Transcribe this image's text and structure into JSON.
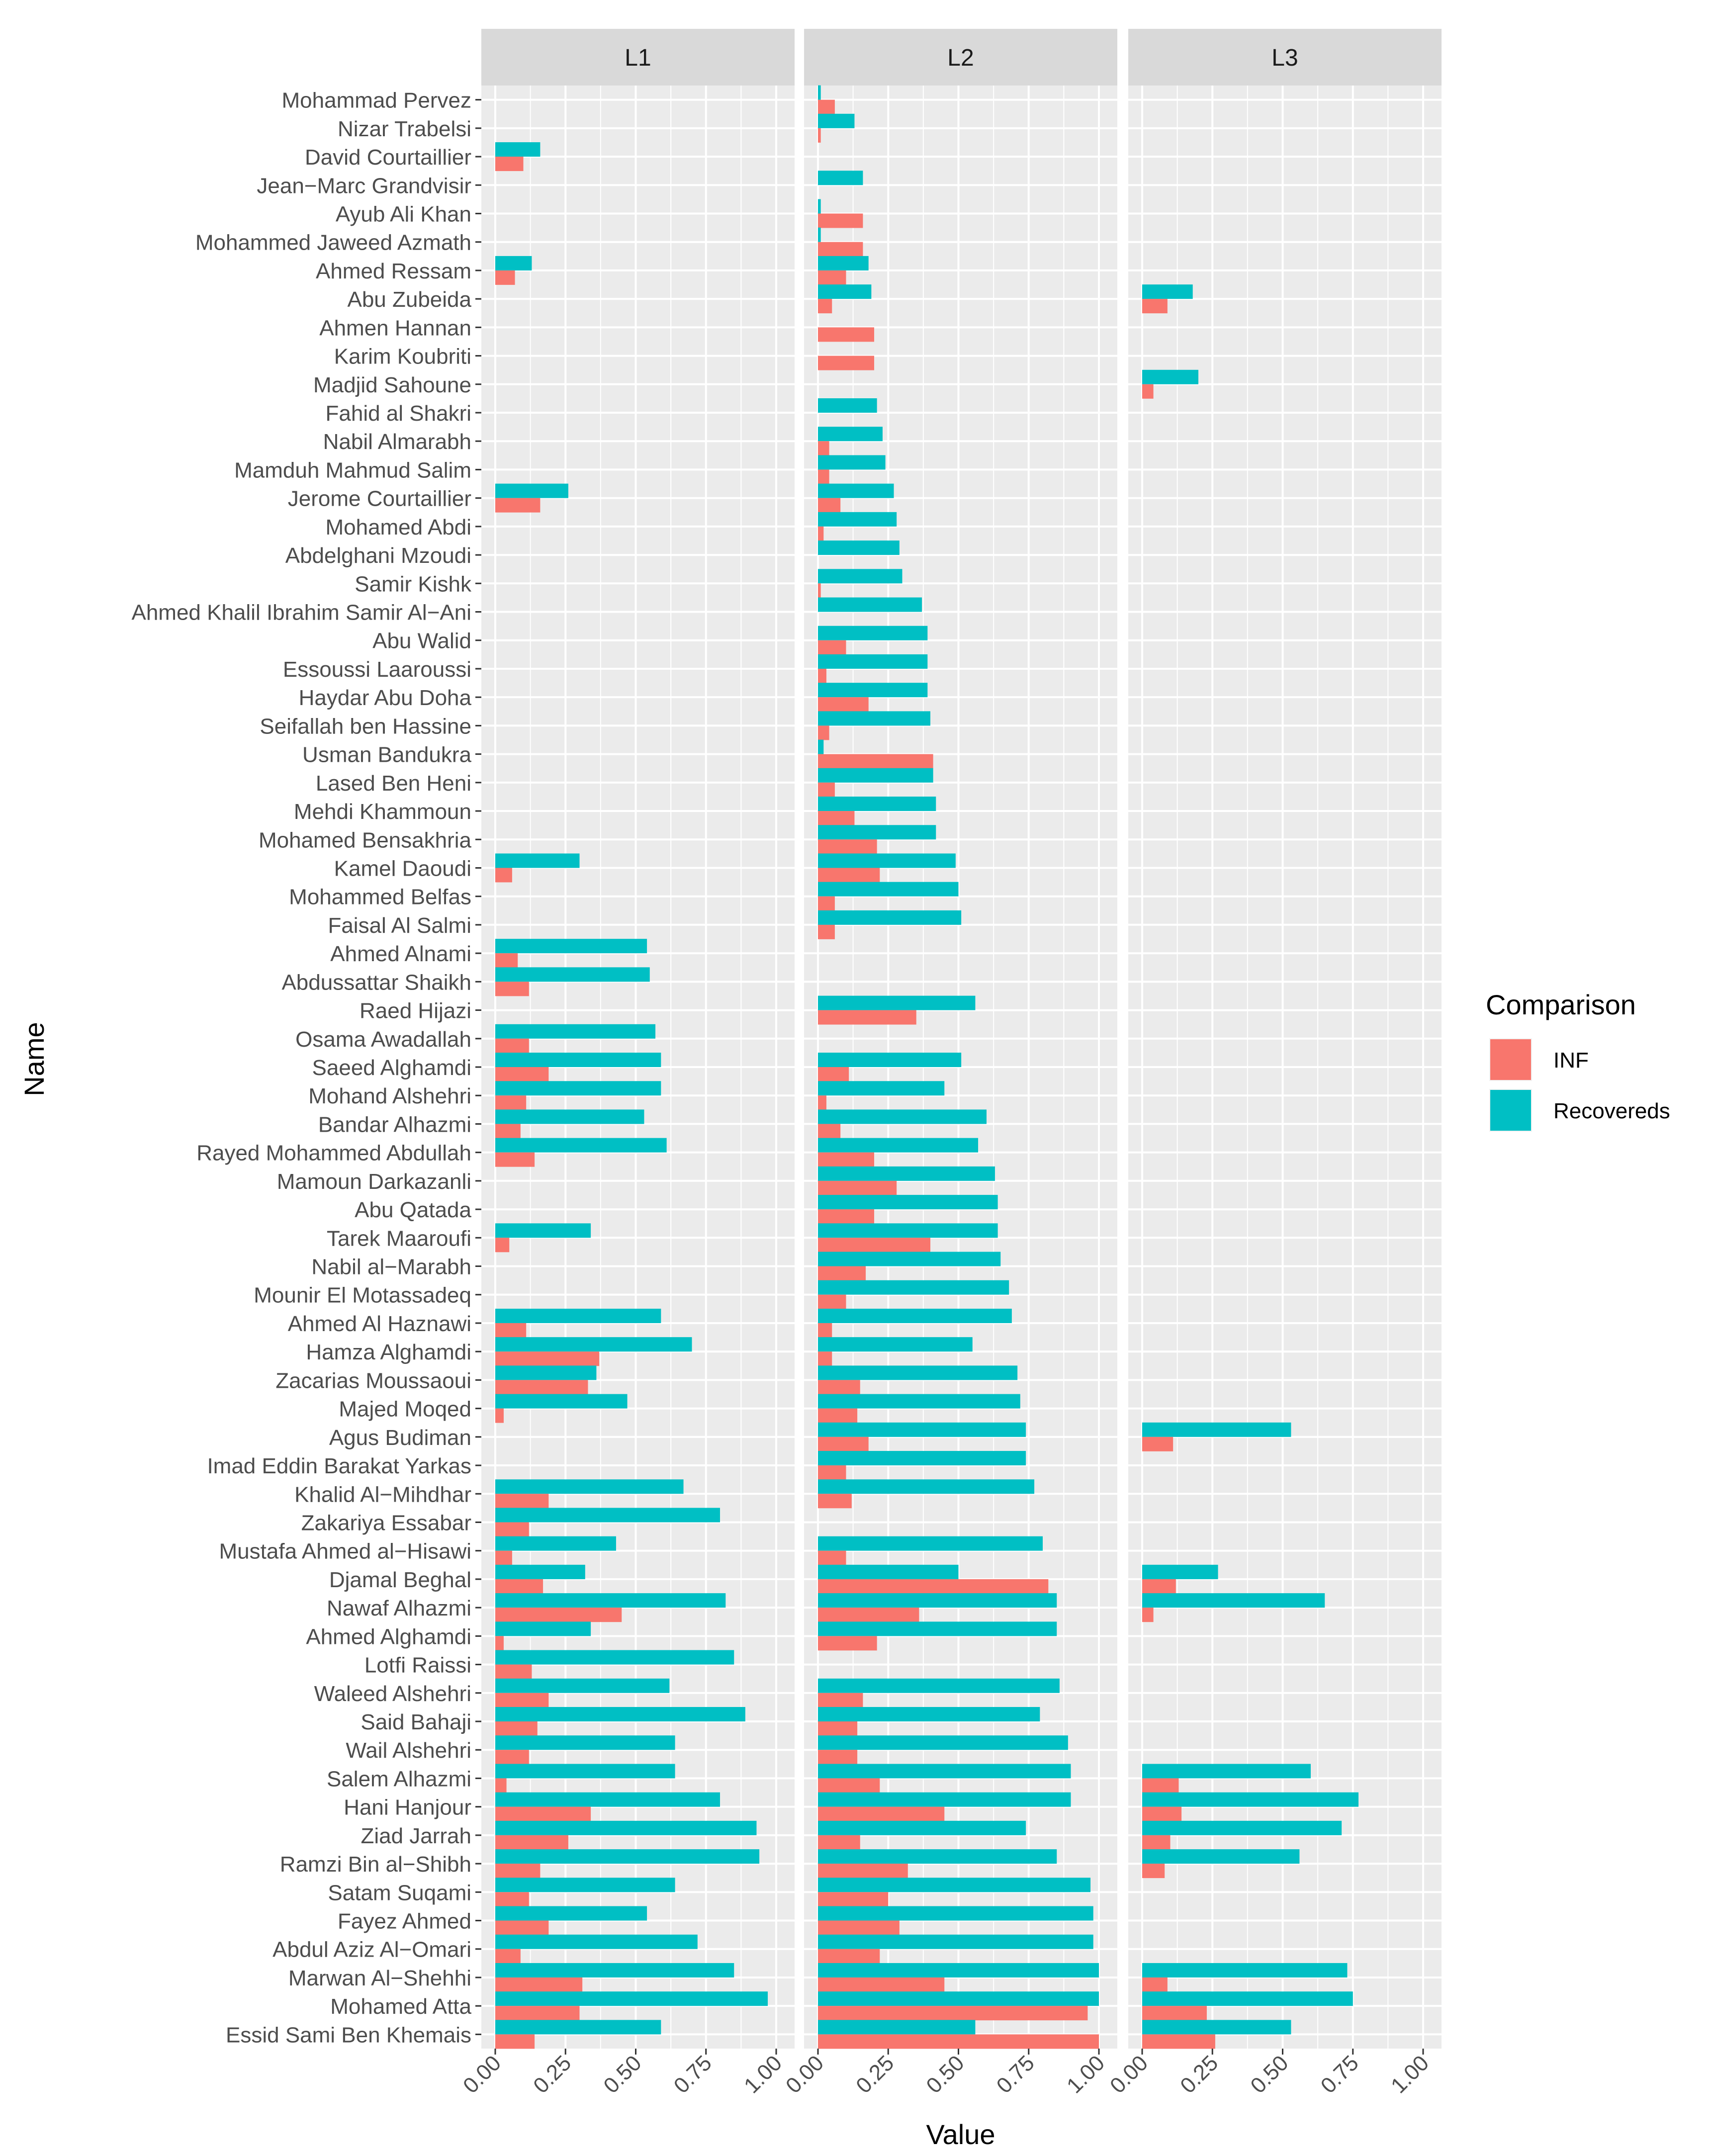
{
  "chart_data": {
    "type": "bar",
    "orientation": "horizontal",
    "facets": [
      "L1",
      "L2",
      "L3"
    ],
    "xlabel": "Value",
    "ylabel": "Name",
    "xlim": [
      0,
      1
    ],
    "xticks": [
      0,
      0.25,
      0.5,
      0.75,
      1
    ],
    "xtick_labels": [
      "0.00",
      "0.25",
      "0.50",
      "0.75",
      "1.00"
    ],
    "legend": {
      "title": "Comparison",
      "position": "right",
      "items": [
        {
          "name": "INF",
          "color": "#F8766D"
        },
        {
          "name": "Recovereds",
          "color": "#00BFC4"
        }
      ]
    },
    "colors": {
      "INF": "#F8766D",
      "Recovereds": "#00BFC4",
      "panel": "#EBEBEB",
      "strip": "#D9D9D9",
      "grid": "#FFFFFF",
      "text": "#4D4D4D"
    },
    "categories": [
      "Mohammad Pervez",
      "Nizar Trabelsi",
      "David Courtaillier",
      "Jean−Marc Grandvisir",
      "Ayub Ali Khan",
      "Mohammed Jaweed Azmath",
      "Ahmed Ressam",
      "Abu Zubeida",
      "Ahmen Hannan",
      "Karim Koubriti",
      "Madjid Sahoune",
      "Fahid al Shakri",
      "Nabil Almarabh",
      "Mamduh Mahmud Salim",
      "Jerome Courtaillier",
      "Mohamed Abdi",
      "Abdelghani Mzoudi",
      "Samir Kishk",
      "Ahmed Khalil Ibrahim Samir Al−Ani",
      "Abu Walid",
      "Essoussi Laaroussi",
      "Haydar Abu Doha",
      "Seifallah ben Hassine",
      "Usman Bandukra",
      "Lased Ben Heni",
      "Mehdi Khammoun",
      "Mohamed Bensakhria",
      "Kamel Daoudi",
      "Mohammed Belfas",
      "Faisal Al Salmi",
      "Ahmed Alnami",
      "Abdussattar Shaikh",
      "Raed Hijazi",
      "Osama Awadallah",
      "Saeed Alghamdi",
      "Mohand Alshehri",
      "Bandar Alhazmi",
      "Rayed Mohammed Abdullah",
      "Mamoun Darkazanli",
      "Abu Qatada",
      "Tarek Maaroufi",
      "Nabil al−Marabh",
      "Mounir El Motassadeq ",
      "Ahmed Al Haznawi",
      "Hamza Alghamdi",
      "Zacarias Moussaoui",
      "Majed Moqed",
      "Agus Budiman",
      "Imad Eddin Barakat Yarkas",
      "Khalid Al−Mihdhar",
      "Zakariya Essabar",
      "Mustafa Ahmed al−Hisawi",
      "Djamal Beghal",
      "Nawaf Alhazmi",
      "Ahmed Alghamdi",
      "Lotfi Raissi",
      "Waleed Alshehri",
      "Said Bahaji",
      "Wail Alshehri",
      "Salem Alhazmi",
      "Hani Hanjour",
      "Ziad Jarrah",
      "Ramzi Bin al−Shibh",
      "Satam Suqami",
      "Fayez Ahmed",
      "Abdul Aziz Al−Omari",
      "Marwan Al−Shehhi",
      "Mohamed Atta",
      "Essid Sami Ben Khemais"
    ],
    "series": [
      {
        "facet": "L1",
        "name": "Recovereds",
        "values": [
          0,
          0,
          0.16,
          0,
          0,
          0,
          0.13,
          0,
          0,
          0,
          0,
          0,
          0,
          0,
          0.26,
          0,
          0,
          0,
          0,
          0,
          0,
          0,
          0,
          0,
          0,
          0,
          0,
          0.3,
          0,
          0,
          0.54,
          0.55,
          0,
          0.57,
          0.59,
          0.59,
          0.53,
          0.61,
          0,
          0,
          0.34,
          0,
          0,
          0.59,
          0.7,
          0.36,
          0.47,
          0,
          0,
          0.67,
          0.8,
          0.43,
          0.32,
          0.82,
          0.34,
          0.85,
          0.62,
          0.89,
          0.64,
          0.64,
          0.8,
          0.93,
          0.94,
          0.64,
          0.54,
          0.72,
          0.85,
          0.97,
          0.59
        ]
      },
      {
        "facet": "L1",
        "name": "INF",
        "values": [
          0,
          0,
          0.1,
          0,
          0,
          0,
          0.07,
          0,
          0,
          0,
          0,
          0,
          0,
          0,
          0.16,
          0,
          0,
          0,
          0,
          0,
          0,
          0,
          0,
          0,
          0,
          0,
          0,
          0.06,
          0,
          0,
          0.08,
          0.12,
          0,
          0.12,
          0.19,
          0.11,
          0.09,
          0.14,
          0,
          0,
          0.05,
          0,
          0,
          0.11,
          0.37,
          0.33,
          0.03,
          0,
          0,
          0.19,
          0.12,
          0.06,
          0.17,
          0.45,
          0.03,
          0.13,
          0.19,
          0.15,
          0.12,
          0.04,
          0.34,
          0.26,
          0.16,
          0.12,
          0.19,
          0.09,
          0.31,
          0.3,
          0.14
        ]
      },
      {
        "facet": "L2",
        "name": "Recovereds",
        "values": [
          0.01,
          0.13,
          0,
          0.16,
          0.01,
          0.01,
          0.18,
          0.19,
          0,
          0,
          0,
          0.21,
          0.23,
          0.24,
          0.27,
          0.28,
          0.29,
          0.3,
          0.37,
          0.39,
          0.39,
          0.39,
          0.4,
          0.02,
          0.41,
          0.42,
          0.42,
          0.49,
          0.5,
          0.51,
          0,
          0,
          0.56,
          0,
          0.51,
          0.45,
          0.6,
          0.57,
          0.63,
          0.64,
          0.64,
          0.65,
          0.68,
          0.69,
          0.55,
          0.71,
          0.72,
          0.74,
          0.74,
          0.77,
          0,
          0.8,
          0.5,
          0.85,
          0.85,
          0,
          0.86,
          0.79,
          0.89,
          0.9,
          0.9,
          0.74,
          0.85,
          0.97,
          0.98,
          0.98,
          1.0,
          1.0,
          0.56
        ]
      },
      {
        "facet": "L2",
        "name": "INF",
        "values": [
          0.06,
          0.01,
          0,
          0,
          0.16,
          0.16,
          0.1,
          0.05,
          0.2,
          0.2,
          0,
          0,
          0.04,
          0.04,
          0.08,
          0.02,
          0,
          0.01,
          0,
          0.1,
          0.03,
          0.18,
          0.04,
          0.41,
          0.06,
          0.13,
          0.21,
          0.22,
          0.06,
          0.06,
          0,
          0,
          0.35,
          0,
          0.11,
          0.03,
          0.08,
          0.2,
          0.28,
          0.2,
          0.4,
          0.17,
          0.1,
          0.05,
          0.05,
          0.15,
          0.14,
          0.18,
          0.1,
          0.12,
          0,
          0.1,
          0.82,
          0.36,
          0.21,
          0,
          0.16,
          0.14,
          0.14,
          0.22,
          0.45,
          0.15,
          0.32,
          0.25,
          0.29,
          0.22,
          0.45,
          0.96,
          1.0
        ]
      },
      {
        "facet": "L3",
        "name": "Recovereds",
        "values": [
          0,
          0,
          0,
          0,
          0,
          0,
          0,
          0.18,
          0,
          0,
          0.2,
          0,
          0,
          0,
          0,
          0,
          0,
          0,
          0,
          0,
          0,
          0,
          0,
          0,
          0,
          0,
          0,
          0,
          0,
          0,
          0,
          0,
          0,
          0,
          0,
          0,
          0,
          0,
          0,
          0,
          0,
          0,
          0,
          0,
          0,
          0,
          0,
          0.53,
          0,
          0,
          0,
          0,
          0.27,
          0.65,
          0,
          0,
          0,
          0,
          0,
          0.6,
          0.77,
          0.71,
          0.56,
          0,
          0,
          0,
          0.73,
          0.75,
          0.53
        ]
      },
      {
        "facet": "L3",
        "name": "INF",
        "values": [
          0,
          0,
          0,
          0,
          0,
          0,
          0,
          0.09,
          0,
          0,
          0.04,
          0,
          0,
          0,
          0,
          0,
          0,
          0,
          0,
          0,
          0,
          0,
          0,
          0,
          0,
          0,
          0,
          0,
          0,
          0,
          0,
          0,
          0,
          0,
          0,
          0,
          0,
          0,
          0,
          0,
          0,
          0,
          0,
          0,
          0,
          0,
          0,
          0.11,
          0,
          0,
          0,
          0,
          0.12,
          0.04,
          0,
          0,
          0,
          0,
          0,
          0.13,
          0.14,
          0.1,
          0.08,
          0,
          0,
          0,
          0.09,
          0.23,
          0.26
        ]
      }
    ]
  }
}
